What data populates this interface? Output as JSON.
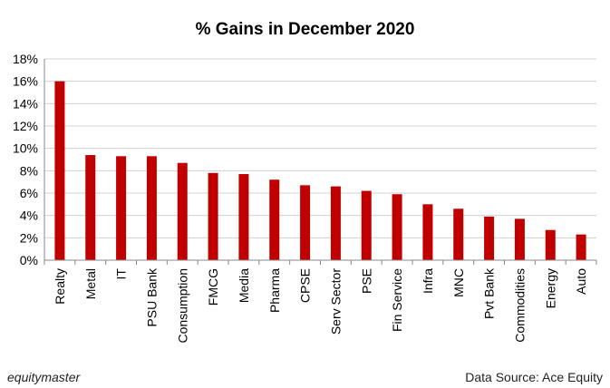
{
  "chart_data": {
    "type": "bar",
    "title": "% Gains in December 2020",
    "categories": [
      "Realty",
      "Metal",
      "IT",
      "PSU Bank",
      "Consumption",
      "FMCG",
      "Media",
      "Pharma",
      "CPSE",
      "Serv Sector",
      "PSE",
      "Fin Service",
      "Infra",
      "MNC",
      "Pvt Bank",
      "Commodities",
      "Energy",
      "Auto"
    ],
    "values": [
      16.0,
      9.4,
      9.3,
      9.3,
      8.7,
      7.8,
      7.7,
      7.2,
      6.7,
      6.6,
      6.2,
      5.9,
      5.0,
      4.6,
      3.9,
      3.7,
      2.7,
      2.3
    ],
    "xlabel": "",
    "ylabel": "",
    "ylim": [
      0,
      18
    ],
    "yticks": [
      "0%",
      "2%",
      "4%",
      "6%",
      "8%",
      "10%",
      "12%",
      "14%",
      "16%",
      "18%"
    ],
    "grid": true,
    "legend": "none",
    "bar_color": "#c00000"
  },
  "footer": {
    "brand": "equitymaster",
    "source": "Data Source: Ace Equity"
  }
}
